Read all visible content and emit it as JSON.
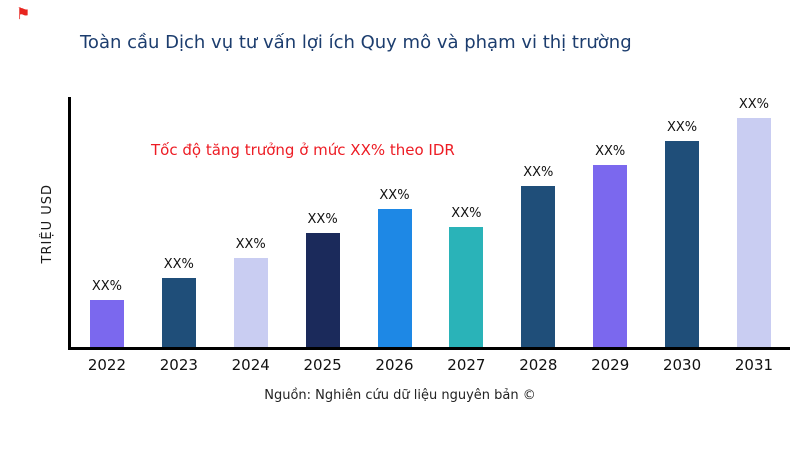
{
  "page": {
    "flag_icon": "⚑",
    "title": "Toàn cầu Dịch vụ tư vấn lợi ích Quy mô và phạm vi thị trường",
    "source_note": "Nguồn: Nghiên cứu dữ liệu nguyên bản ©"
  },
  "chart_data": {
    "type": "bar",
    "title": "Toàn cầu Dịch vụ tư vấn lợi ích Quy mô và phạm vi thị trường",
    "xlabel": "",
    "ylabel": "TRIỆU USD",
    "annotation": "Tốc độ tăng trưởng ở mức XX% theo IDR",
    "annotation_color": "#ed1c24",
    "categories": [
      "2022",
      "2023",
      "2024",
      "2025",
      "2026",
      "2027",
      "2028",
      "2029",
      "2030",
      "2031"
    ],
    "values": [
      47,
      69,
      89,
      114,
      138,
      120,
      161,
      182,
      206,
      230
    ],
    "bar_labels": [
      "XX%",
      "XX%",
      "XX%",
      "XX%",
      "XX%",
      "XX%",
      "XX%",
      "XX%",
      "XX%",
      "XX%"
    ],
    "bar_colors": [
      "#7b68ee",
      "#1f4e79",
      "#c9cdf2",
      "#1b2a5b",
      "#1e88e5",
      "#2ab3b8",
      "#1f4e79",
      "#7b68ee",
      "#1f4e79",
      "#c9cdf2"
    ],
    "ylim": [
      0,
      250
    ],
    "grid": false,
    "legend": false,
    "axis_color": "#000000"
  }
}
